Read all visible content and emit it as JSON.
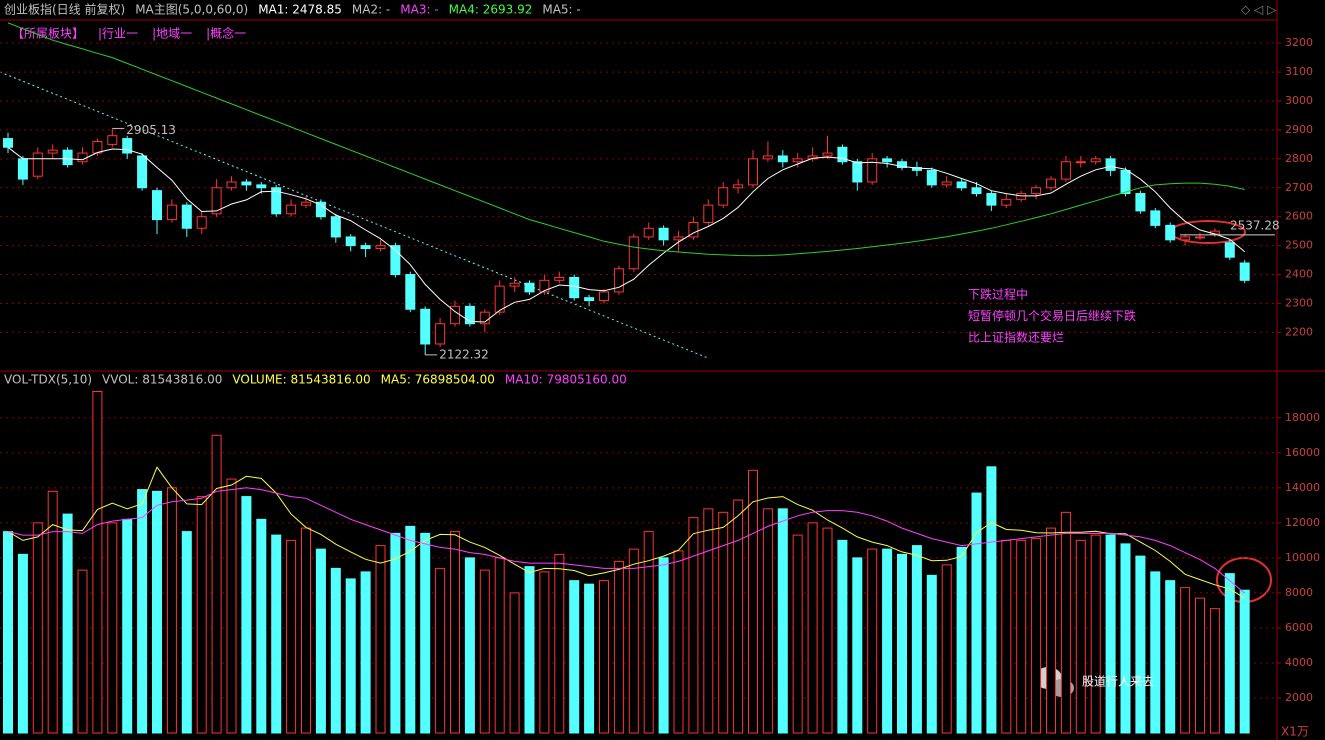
{
  "chart_data": [
    {
      "type": "candlestick",
      "legend": [
        {
          "text": "创业板指(日线 前复权)",
          "color": "#c0c0c0"
        },
        {
          "text": "MA主图(5,0,0,60,0)",
          "color": "#c0c0c0"
        },
        {
          "text": "MA1: 2478.85",
          "color": "#ffffff"
        },
        {
          "text": "MA2: -",
          "color": "#c0c0c0"
        },
        {
          "text": "MA3: -",
          "color": "#ff40ff"
        },
        {
          "text": "MA4: 2693.92",
          "color": "#40ff40"
        },
        {
          "text": "MA5: -",
          "color": "#c0c0c0"
        }
      ],
      "tabs": [
        "【所属板块】",
        "|行业一",
        "|地域一",
        "|概念一"
      ],
      "annotations": [
        "下跌过程中",
        "短暂停顿几个交易日后继续下跌",
        "比上证指数还要烂"
      ],
      "level": 2537.28,
      "up_color": "#ff3232",
      "down_color": "#54ffff",
      "ylim": [
        2070,
        3280
      ],
      "yticks": [
        2200,
        2300,
        2400,
        2500,
        2600,
        2700,
        2800,
        2900,
        3000,
        3100,
        3200
      ],
      "grid": true,
      "candles": [
        [
          2870,
          2890,
          2820,
          2840
        ],
        [
          2800,
          2810,
          2710,
          2730
        ],
        [
          2740,
          2840,
          2730,
          2820
        ],
        [
          2820,
          2850,
          2800,
          2830
        ],
        [
          2830,
          2840,
          2770,
          2780
        ],
        [
          2790,
          2840,
          2780,
          2820
        ],
        [
          2820,
          2870,
          2810,
          2860
        ],
        [
          2850,
          2905.13,
          2840,
          2880
        ],
        [
          2870,
          2880,
          2800,
          2820
        ],
        [
          2810,
          2820,
          2690,
          2700
        ],
        [
          2690,
          2700,
          2540,
          2590
        ],
        [
          2590,
          2660,
          2580,
          2640
        ],
        [
          2640,
          2650,
          2530,
          2560
        ],
        [
          2560,
          2620,
          2540,
          2600
        ],
        [
          2610,
          2730,
          2600,
          2700
        ],
        [
          2700,
          2740,
          2690,
          2720
        ],
        [
          2720,
          2730,
          2690,
          2710
        ],
        [
          2710,
          2720,
          2680,
          2700
        ],
        [
          2700,
          2710,
          2600,
          2610
        ],
        [
          2610,
          2660,
          2600,
          2640
        ],
        [
          2640,
          2670,
          2630,
          2650
        ],
        [
          2650,
          2660,
          2590,
          2600
        ],
        [
          2600,
          2610,
          2510,
          2530
        ],
        [
          2530,
          2540,
          2480,
          2500
        ],
        [
          2500,
          2510,
          2460,
          2490
        ],
        [
          2490,
          2520,
          2480,
          2500
        ],
        [
          2500,
          2510,
          2390,
          2400
        ],
        [
          2400,
          2410,
          2270,
          2280
        ],
        [
          2280,
          2290,
          2122.32,
          2160
        ],
        [
          2160,
          2250,
          2150,
          2230
        ],
        [
          2230,
          2310,
          2220,
          2290
        ],
        [
          2290,
          2300,
          2220,
          2230
        ],
        [
          2230,
          2280,
          2200,
          2270
        ],
        [
          2270,
          2380,
          2260,
          2360
        ],
        [
          2360,
          2390,
          2340,
          2370
        ],
        [
          2370,
          2380,
          2330,
          2340
        ],
        [
          2340,
          2400,
          2330,
          2380
        ],
        [
          2380,
          2410,
          2370,
          2390
        ],
        [
          2390,
          2400,
          2310,
          2320
        ],
        [
          2320,
          2330,
          2290,
          2310
        ],
        [
          2310,
          2350,
          2300,
          2340
        ],
        [
          2340,
          2430,
          2330,
          2420
        ],
        [
          2420,
          2540,
          2410,
          2530
        ],
        [
          2530,
          2580,
          2520,
          2560
        ],
        [
          2560,
          2570,
          2500,
          2520
        ],
        [
          2520,
          2550,
          2480,
          2530
        ],
        [
          2530,
          2600,
          2520,
          2580
        ],
        [
          2580,
          2660,
          2570,
          2640
        ],
        [
          2640,
          2720,
          2630,
          2700
        ],
        [
          2700,
          2730,
          2680,
          2710
        ],
        [
          2710,
          2830,
          2700,
          2800
        ],
        [
          2800,
          2860,
          2790,
          2810
        ],
        [
          2810,
          2830,
          2770,
          2790
        ],
        [
          2790,
          2820,
          2770,
          2800
        ],
        [
          2800,
          2840,
          2790,
          2810
        ],
        [
          2810,
          2880,
          2800,
          2820
        ],
        [
          2840,
          2850,
          2780,
          2790
        ],
        [
          2790,
          2800,
          2690,
          2720
        ],
        [
          2720,
          2820,
          2710,
          2800
        ],
        [
          2800,
          2810,
          2770,
          2790
        ],
        [
          2790,
          2800,
          2760,
          2770
        ],
        [
          2770,
          2790,
          2740,
          2760
        ],
        [
          2760,
          2770,
          2700,
          2710
        ],
        [
          2710,
          2740,
          2700,
          2720
        ],
        [
          2720,
          2730,
          2690,
          2700
        ],
        [
          2700,
          2720,
          2670,
          2680
        ],
        [
          2680,
          2690,
          2620,
          2640
        ],
        [
          2640,
          2680,
          2630,
          2660
        ],
        [
          2660,
          2690,
          2650,
          2680
        ],
        [
          2680,
          2710,
          2660,
          2700
        ],
        [
          2700,
          2740,
          2690,
          2730
        ],
        [
          2730,
          2810,
          2720,
          2790
        ],
        [
          2790,
          2810,
          2770,
          2790
        ],
        [
          2790,
          2810,
          2780,
          2800
        ],
        [
          2800,
          2810,
          2740,
          2760
        ],
        [
          2760,
          2770,
          2670,
          2680
        ],
        [
          2680,
          2690,
          2610,
          2620
        ],
        [
          2620,
          2630,
          2560,
          2570
        ],
        [
          2570,
          2580,
          2510,
          2520
        ],
        [
          2520,
          2540,
          2500,
          2530
        ],
        [
          2530,
          2545,
          2520,
          2530
        ],
        [
          2540,
          2560,
          2530,
          2550
        ],
        [
          2510,
          2520,
          2450,
          2460
        ],
        [
          2440,
          2450,
          2370,
          2380
        ]
      ],
      "series": [
        {
          "color": "#ffffff",
          "values": [
            2840,
            2800,
            2800,
            2800,
            2800,
            2797,
            2822,
            2834,
            2832,
            2816,
            2770,
            2726,
            2662,
            2618,
            2620,
            2644,
            2658,
            2686,
            2688,
            2676,
            2662,
            2640,
            2606,
            2586,
            2554,
            2524,
            2484,
            2434,
            2366,
            2314,
            2272,
            2238,
            2236,
            2276,
            2304,
            2314,
            2344,
            2364,
            2360,
            2348,
            2344,
            2356,
            2384,
            2432,
            2474,
            2512,
            2544,
            2566,
            2594,
            2632,
            2686,
            2732,
            2762,
            2782,
            2802,
            2806,
            2802,
            2786,
            2788,
            2784,
            2774,
            2768,
            2766,
            2750,
            2732,
            2714,
            2690,
            2680,
            2672,
            2672,
            2682,
            2712,
            2740,
            2762,
            2774,
            2764,
            2730,
            2686,
            2630,
            2584,
            2554,
            2540,
            2522,
            2478.85
          ]
        },
        {
          "color": "#2ecc2e",
          "values": [
            3270,
            3250,
            3230,
            3210,
            3195,
            3180,
            3165,
            3150,
            3130,
            3110,
            3090,
            3070,
            3050,
            3030,
            3010,
            2990,
            2970,
            2950,
            2930,
            2910,
            2890,
            2870,
            2850,
            2830,
            2810,
            2790,
            2770,
            2750,
            2730,
            2710,
            2690,
            2670,
            2650,
            2630,
            2610,
            2590,
            2575,
            2560,
            2545,
            2530,
            2515,
            2505,
            2495,
            2488,
            2482,
            2478,
            2474,
            2470,
            2468,
            2466,
            2465,
            2466,
            2468,
            2472,
            2476,
            2480,
            2485,
            2490,
            2496,
            2502,
            2508,
            2515,
            2523,
            2531,
            2540,
            2550,
            2560,
            2572,
            2584,
            2597,
            2610,
            2625,
            2640,
            2655,
            2670,
            2685,
            2700,
            2710,
            2714,
            2716,
            2716,
            2712,
            2705,
            2693.92
          ]
        }
      ]
    },
    {
      "type": "bar",
      "legend": [
        {
          "text": "VOL-TDX(5,10)",
          "color": "#c0c0c0"
        },
        {
          "text": "VVOL: 81543816.00",
          "color": "#c0c0c0"
        },
        {
          "text": "VOLUME: 81543816.00",
          "color": "#ffff40"
        },
        {
          "text": "MA5: 76898504.00",
          "color": "#ffff40"
        },
        {
          "text": "MA10: 79805160.00",
          "color": "#ff40ff"
        }
      ],
      "unit": "X1万",
      "watermark": "股道行人来去",
      "ylim": [
        0,
        19700
      ],
      "yticks": [
        2000,
        4000,
        6000,
        8000,
        10000,
        12000,
        14000,
        16000,
        18000
      ],
      "grid": true,
      "values": [
        11500,
        10200,
        12000,
        13800,
        12500,
        9300,
        19500,
        12000,
        12200,
        13900,
        13800,
        14000,
        11500,
        13500,
        17000,
        14500,
        13500,
        12200,
        11300,
        11000,
        11700,
        10500,
        9400,
        8800,
        9200,
        10700,
        11400,
        11800,
        11400,
        9400,
        11500,
        10000,
        9300,
        10000,
        8000,
        9500,
        9200,
        10200,
        8700,
        8500,
        8700,
        9800,
        10500,
        11500,
        10000,
        10400,
        12300,
        12800,
        12600,
        13300,
        15000,
        12800,
        12800,
        11300,
        12000,
        11700,
        11000,
        10000,
        10500,
        10500,
        10200,
        10700,
        9000,
        9600,
        10600,
        13700,
        15200,
        11000,
        11000,
        11100,
        11700,
        12600,
        11000,
        11300,
        11300,
        10800,
        10100,
        9200,
        8700,
        8300,
        7700,
        7100,
        9100,
        8154.3816
      ],
      "series": [
        {
          "color": "#ffff40",
          "values": [
            11500,
            11000,
            11200,
            11900,
            11600,
            11560,
            12760,
            13120,
            12800,
            13080,
            15180,
            14000,
            13080,
            13040,
            13960,
            14160,
            14660,
            14540,
            13700,
            12500,
            11740,
            11340,
            10780,
            10340,
            9920,
            9700,
            9940,
            10380,
            11000,
            11340,
            11320,
            10900,
            10600,
            10140,
            9640,
            9160,
            9400,
            9380,
            9280,
            8980,
            9140,
            9340,
            9640,
            9840,
            10100,
            10440,
            11380,
            11580,
            11740,
            12400,
            13200,
            13420,
            13500,
            13040,
            12720,
            12160,
            11700,
            11200,
            10900,
            10700,
            10340,
            10140,
            9840,
            9860,
            10080,
            11440,
            12020,
            11620,
            11580,
            11440,
            11420,
            11460,
            11460,
            11520,
            11380,
            11380,
            10900,
            10420,
            9800,
            9060,
            8760,
            8460,
            8220,
            7689.8504
          ]
        },
        {
          "color": "#ff40ff",
          "values": [
            11500,
            11300,
            11300,
            11500,
            11500,
            11400,
            11900,
            12100,
            12200,
            12300,
            13000,
            13200,
            13300,
            13400,
            13800,
            13900,
            14000,
            13900,
            13700,
            13500,
            13400,
            13000,
            12600,
            12200,
            11900,
            11600,
            11300,
            11000,
            10800,
            10600,
            10500,
            10300,
            10200,
            10000,
            9800,
            9700,
            9700,
            9700,
            9600,
            9500,
            9400,
            9400,
            9400,
            9500,
            9600,
            9800,
            10100,
            10400,
            10700,
            11000,
            11400,
            11800,
            12100,
            12400,
            12600,
            12700,
            12700,
            12600,
            12400,
            12100,
            11700,
            11400,
            11100,
            10900,
            10700,
            10800,
            10900,
            11000,
            11100,
            11200,
            11300,
            11400,
            11400,
            11400,
            11400,
            11300,
            11200,
            11000,
            10700,
            10300,
            9900,
            9400,
            8700,
            7980.516
          ]
        }
      ]
    }
  ]
}
